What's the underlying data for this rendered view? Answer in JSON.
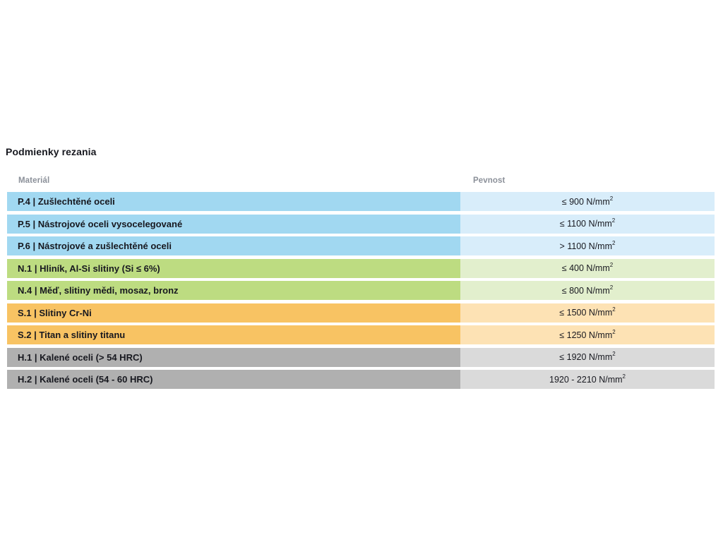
{
  "title": "Podmienky rezania",
  "table": {
    "headers": {
      "material": "Materiál",
      "pevnost": "Pevnost"
    },
    "colors": {
      "steel": {
        "left": "#a1d8f1",
        "right": "#d8edfa"
      },
      "nonferrous": {
        "left": "#bddc81",
        "right": "#e2efcd"
      },
      "superalloy": {
        "left": "#f8c363",
        "right": "#fde2b4"
      },
      "hardened": {
        "left": "#b0b0b0",
        "right": "#dadada"
      }
    },
    "rows": [
      {
        "material": "P.4 | Zušlechtěné oceli",
        "pevnost": "≤ 900 N/mm",
        "pevnost_sup": "2",
        "group": "steel"
      },
      {
        "material": "P.5 | Nástrojové oceli vysocelegované",
        "pevnost": "≤ 1100 N/mm",
        "pevnost_sup": "2",
        "group": "steel"
      },
      {
        "material": "P.6 | Nástrojové a zušlechtěné oceli",
        "pevnost": "> 1100 N/mm",
        "pevnost_sup": "2",
        "group": "steel"
      },
      {
        "material": "N.1 | Hliník, Al-Si slitiny (Si ≤ 6%)",
        "pevnost": "≤ 400 N/mm",
        "pevnost_sup": "2",
        "group": "nonferrous"
      },
      {
        "material": "N.4 | Měď, slitiny mědi, mosaz, bronz",
        "pevnost": "≤ 800 N/mm",
        "pevnost_sup": "2",
        "group": "nonferrous"
      },
      {
        "material": "S.1 | Slitiny Cr-Ni",
        "pevnost": "≤ 1500 N/mm",
        "pevnost_sup": "2",
        "group": "superalloy"
      },
      {
        "material": "S.2 | Titan a slitiny titanu",
        "pevnost": "≤ 1250 N/mm",
        "pevnost_sup": "2",
        "group": "superalloy"
      },
      {
        "material": "H.1 | Kalené oceli (> 54 HRC)",
        "pevnost": "≤ 1920 N/mm",
        "pevnost_sup": "2",
        "group": "hardened"
      },
      {
        "material": "H.2 | Kalené oceli (54 - 60 HRC)",
        "pevnost": "1920 - 2210 N/mm",
        "pevnost_sup": "2",
        "group": "hardened"
      }
    ]
  }
}
